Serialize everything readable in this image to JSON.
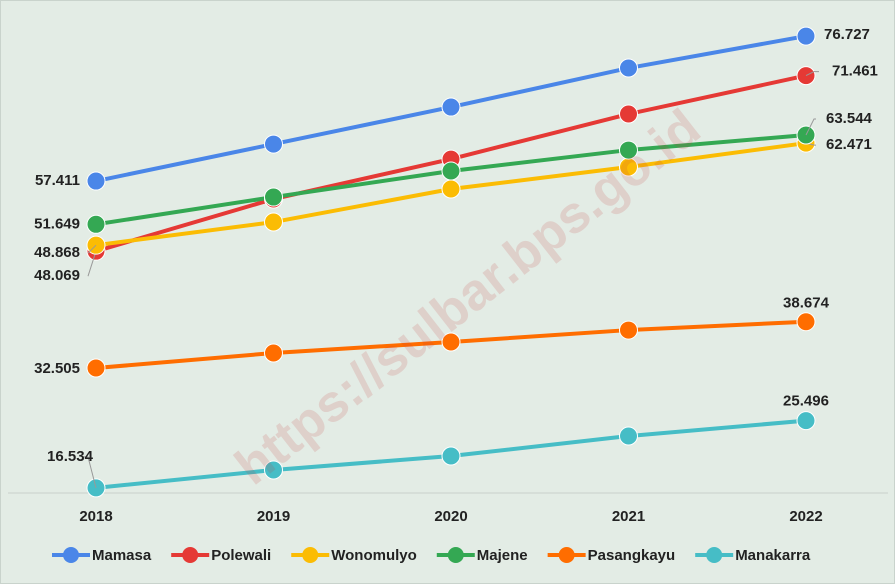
{
  "chart_data": {
    "type": "line",
    "categories": [
      "2018",
      "2019",
      "2020",
      "2021",
      "2022"
    ],
    "series": [
      {
        "name": "Mamasa",
        "color": "#4a86e8",
        "values": [
          57.411,
          62.34,
          67.27,
          72.47,
          76.727
        ]
      },
      {
        "name": "Polewali",
        "color": "#e53935",
        "values": [
          48.069,
          55.02,
          60.34,
          66.34,
          71.461
        ]
      },
      {
        "name": "Wonomulyo",
        "color": "#fbbc04",
        "values": [
          48.868,
          51.95,
          56.35,
          59.28,
          62.471
        ]
      },
      {
        "name": "Majene",
        "color": "#34a853",
        "values": [
          51.649,
          55.28,
          58.75,
          61.54,
          63.544
        ]
      },
      {
        "name": "Pasangkayu",
        "color": "#ff6d00",
        "values": [
          32.505,
          34.5,
          35.97,
          37.56,
          38.674
        ]
      },
      {
        "name": "Manakarra",
        "color": "#46bdc6",
        "values": [
          16.534,
          18.92,
          20.78,
          23.44,
          25.496
        ]
      }
    ],
    "ylim": [
      15,
      81
    ],
    "watermark": "https://sulbar.bps.go.id"
  }
}
